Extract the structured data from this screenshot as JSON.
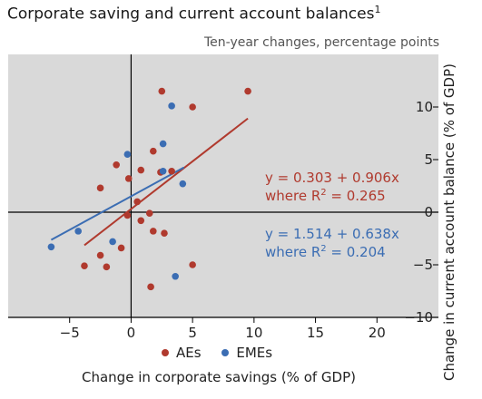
{
  "title": "Corporate saving and current account balances",
  "title_footnote": "1",
  "subtitle": "Ten-year changes, percentage points",
  "colors": {
    "AEs": "#b03a2e",
    "EMEs": "#3b6db3",
    "plot_bg": "#d9d9d9"
  },
  "chart_data": {
    "type": "scatter",
    "xlabel": "Change in corporate savings (% of GDP)",
    "ylabel": "Change in current account balance (% of GDP)",
    "xlim": [
      -10,
      25
    ],
    "ylim": [
      -10,
      15
    ],
    "xticks": [
      -5,
      0,
      5,
      10,
      15,
      20
    ],
    "yticks": [
      -10,
      -5,
      0,
      5,
      10
    ],
    "grid": false,
    "legend_position": "bottom-center",
    "series": [
      {
        "name": "AEs",
        "color": "#b03a2e",
        "points": [
          [
            2.5,
            11.5
          ],
          [
            9.5,
            11.5
          ],
          [
            5.0,
            10.0
          ],
          [
            1.8,
            5.8
          ],
          [
            -1.2,
            4.5
          ],
          [
            0.8,
            4.0
          ],
          [
            2.4,
            3.8
          ],
          [
            3.3,
            3.9
          ],
          [
            -0.2,
            3.2
          ],
          [
            -2.5,
            2.3
          ],
          [
            0.5,
            1.0
          ],
          [
            -0.3,
            -0.3
          ],
          [
            1.5,
            -0.1
          ],
          [
            0.8,
            -0.8
          ],
          [
            1.8,
            -1.8
          ],
          [
            2.7,
            -2.0
          ],
          [
            -0.8,
            -3.4
          ],
          [
            -2.5,
            -4.1
          ],
          [
            -3.8,
            -5.1
          ],
          [
            -2.0,
            -5.2
          ],
          [
            5.0,
            -5.0
          ],
          [
            1.6,
            -7.1
          ]
        ],
        "fit": {
          "equation": "y = 0.303 + 0.906x",
          "r2_label": "where R",
          "r2_value": "= 0.265",
          "intercept": 0.303,
          "slope": 0.906,
          "x_range": [
            -3.8,
            9.5
          ]
        }
      },
      {
        "name": "EMEs",
        "color": "#3b6db3",
        "points": [
          [
            3.3,
            10.1
          ],
          [
            2.6,
            6.5
          ],
          [
            -0.3,
            5.5
          ],
          [
            2.6,
            3.9
          ],
          [
            4.2,
            2.7
          ],
          [
            -4.3,
            -1.8
          ],
          [
            -1.5,
            -2.8
          ],
          [
            -6.5,
            -3.3
          ],
          [
            3.6,
            -6.1
          ]
        ],
        "fit": {
          "equation": "y = 1.514 + 0.638x",
          "r2_label": "where R",
          "r2_value": "= 0.204",
          "intercept": 1.514,
          "slope": 0.638,
          "x_range": [
            -6.5,
            4.3
          ]
        }
      }
    ]
  }
}
